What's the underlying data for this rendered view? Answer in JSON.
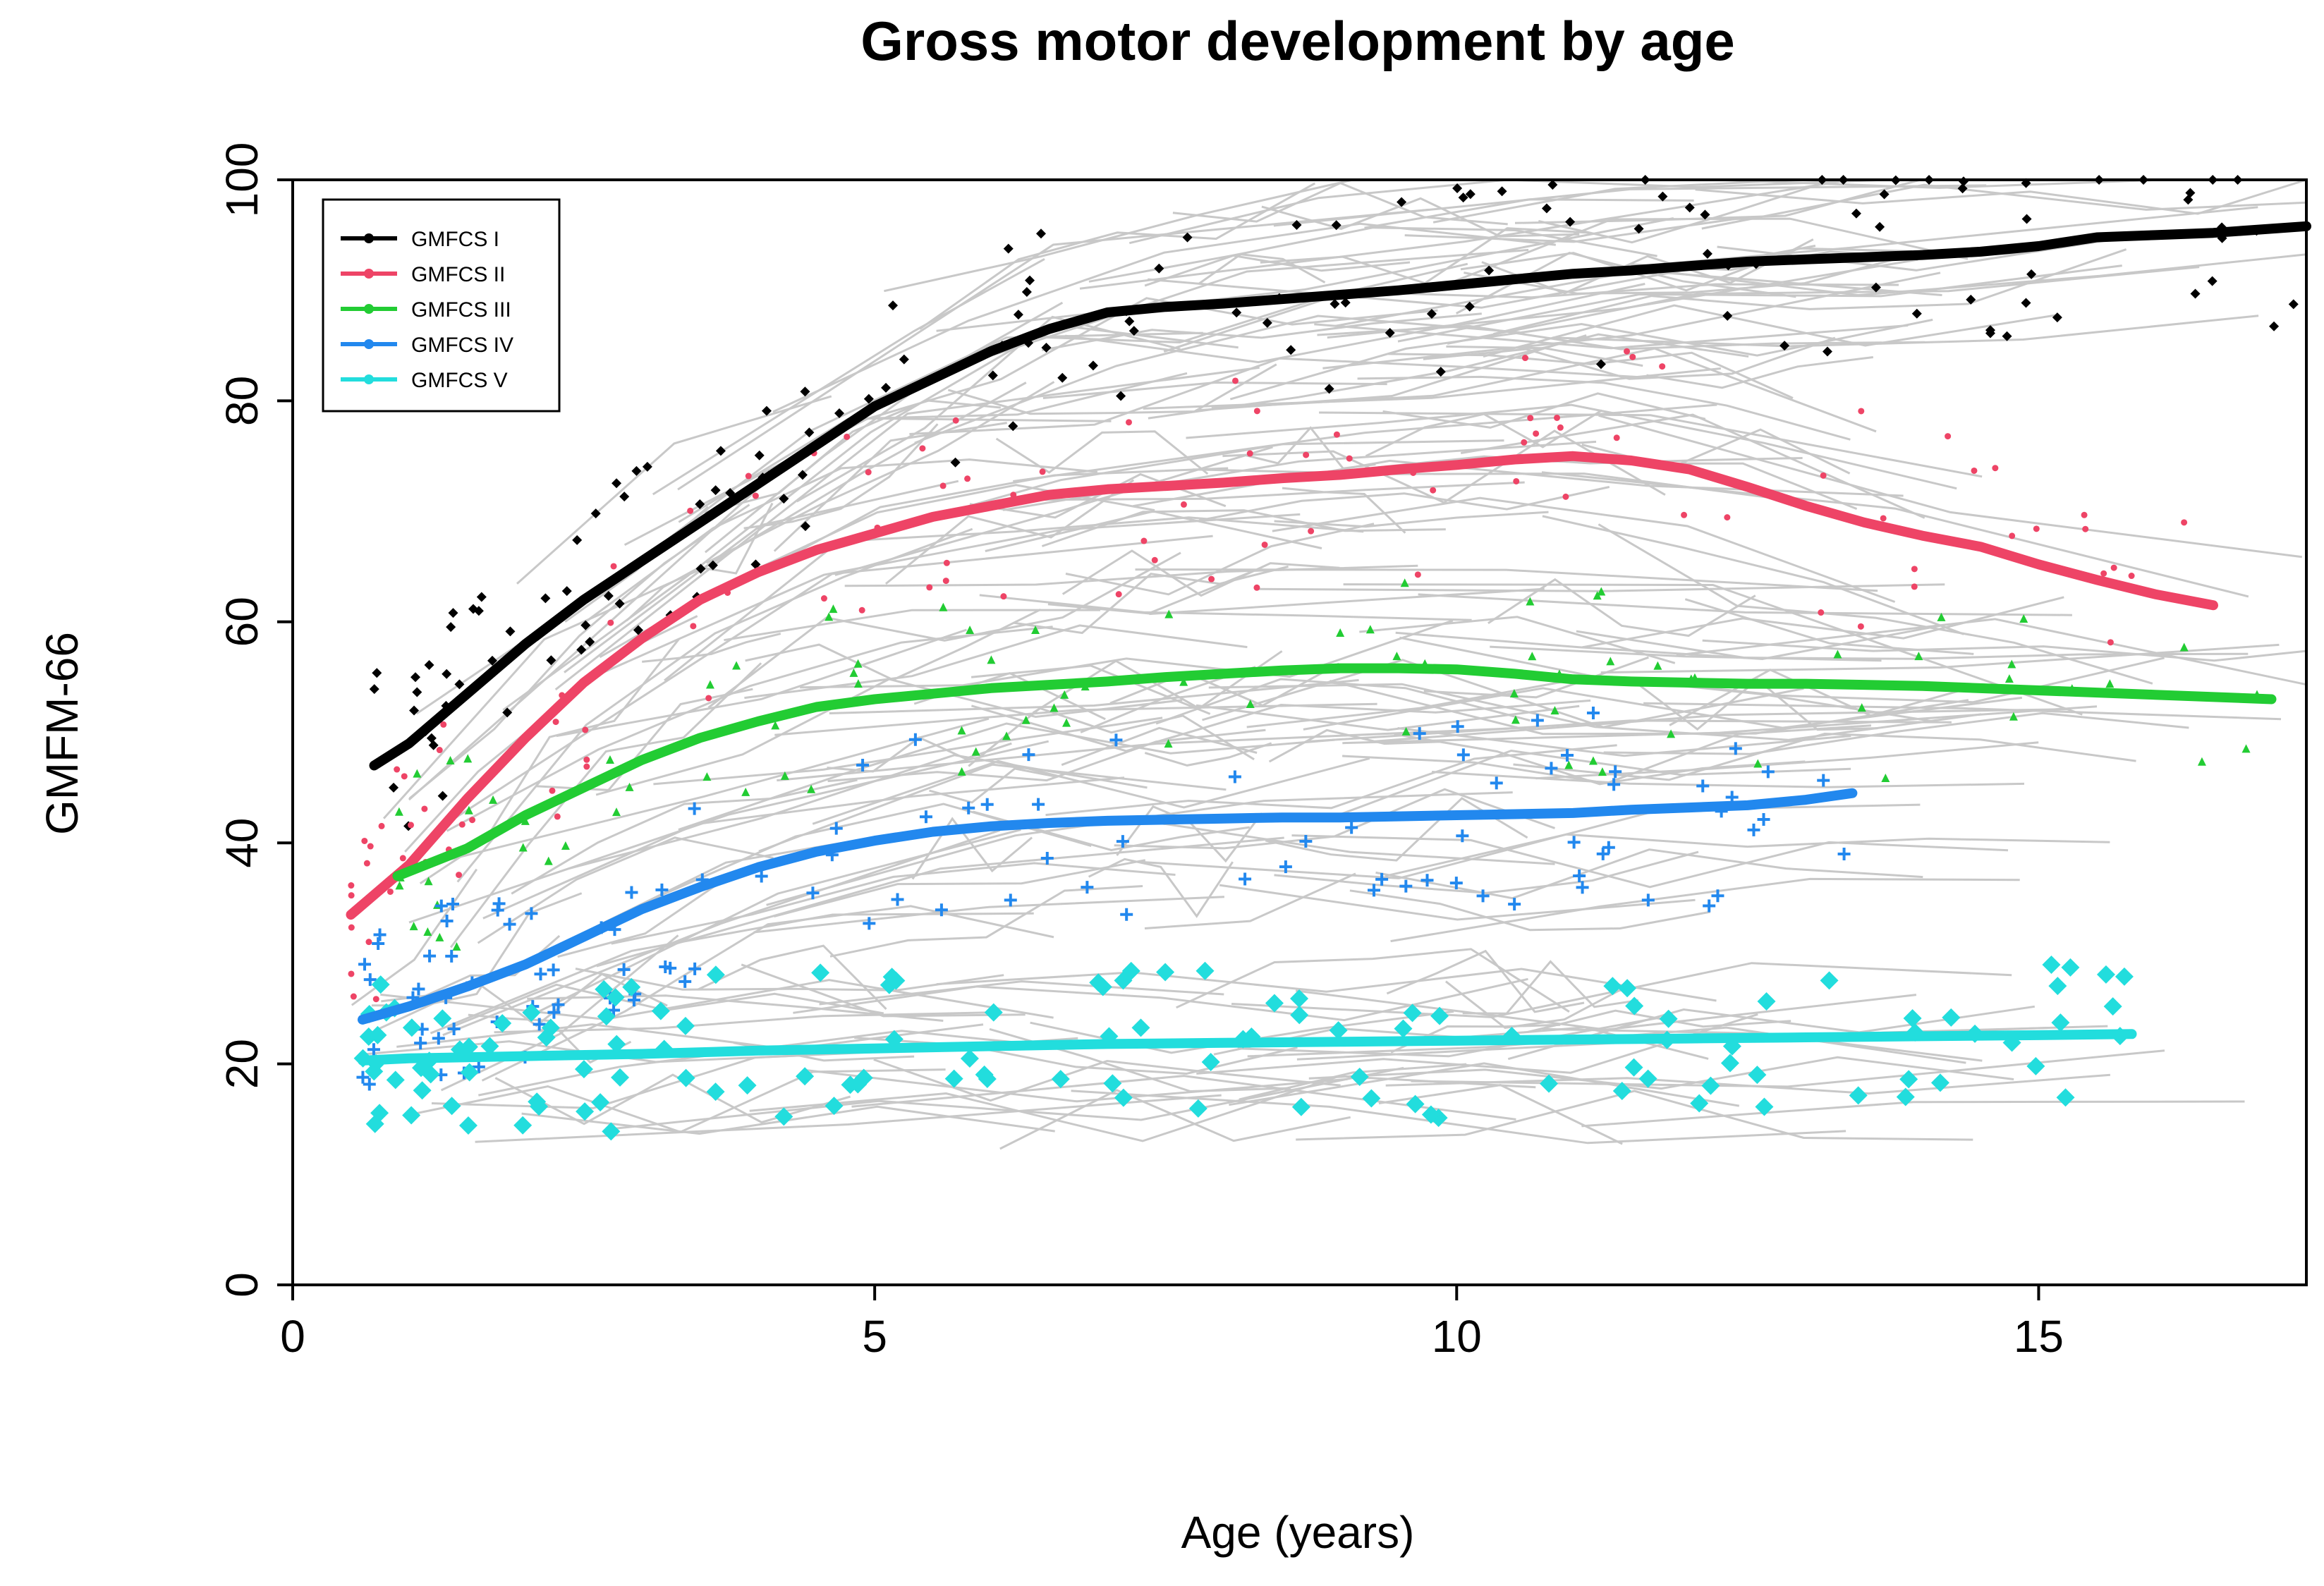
{
  "chart_data": {
    "type": "line",
    "title": "Gross motor development by age",
    "xlabel": "Age (years)",
    "ylabel": "GMFM-66",
    "xlim": [
      0,
      17.3
    ],
    "ylim": [
      0,
      100
    ],
    "x_ticks": [
      0,
      5,
      10,
      15
    ],
    "y_ticks": [
      0,
      20,
      40,
      60,
      80,
      100
    ],
    "grid": false,
    "legend_position": "top-left",
    "background_trajectories_color": "#c8c8c8",
    "series": [
      {
        "name": "GMFCS I",
        "color": "#000000",
        "marker": "diamond",
        "x": [
          0.7,
          1.0,
          1.5,
          2.0,
          2.5,
          3.0,
          3.5,
          4.0,
          4.5,
          5.0,
          5.5,
          6.0,
          6.5,
          7.0,
          7.5,
          8.0,
          8.5,
          9.0,
          9.5,
          10.0,
          10.5,
          11.0,
          11.5,
          12.0,
          12.5,
          13.0,
          13.5,
          14.0,
          14.5,
          15.0,
          15.5,
          16.0,
          16.5,
          17.3
        ],
        "values": [
          47.0,
          49.0,
          53.5,
          58.0,
          62.0,
          65.5,
          69.0,
          72.5,
          76.0,
          79.5,
          82.0,
          84.5,
          86.5,
          88.0,
          88.5,
          88.8,
          89.2,
          89.6,
          90.0,
          90.5,
          91.0,
          91.5,
          91.8,
          92.2,
          92.6,
          92.8,
          93.0,
          93.2,
          93.5,
          94.0,
          94.8,
          95.0,
          95.2,
          95.8
        ]
      },
      {
        "name": "GMFCS II",
        "color": "#ee4466",
        "marker": "dot",
        "x": [
          0.5,
          1.0,
          1.5,
          2.0,
          2.5,
          3.0,
          3.5,
          4.0,
          4.5,
          5.0,
          5.5,
          6.0,
          6.5,
          7.0,
          7.5,
          8.0,
          8.5,
          9.0,
          9.5,
          10.0,
          10.5,
          11.0,
          11.5,
          12.0,
          12.5,
          13.0,
          13.5,
          14.0,
          14.5,
          15.0,
          15.5,
          16.0,
          16.5
        ],
        "values": [
          33.5,
          38.0,
          44.0,
          49.5,
          54.5,
          58.5,
          62.0,
          64.5,
          66.5,
          68.0,
          69.5,
          70.5,
          71.5,
          72.0,
          72.3,
          72.6,
          73.0,
          73.3,
          73.8,
          74.2,
          74.7,
          75.0,
          74.6,
          73.8,
          72.2,
          70.5,
          69.0,
          67.8,
          66.8,
          65.2,
          63.8,
          62.5,
          61.5
        ]
      },
      {
        "name": "GMFCS III",
        "color": "#22cc33",
        "marker": "triangle",
        "x": [
          0.9,
          1.5,
          2.0,
          2.5,
          3.0,
          3.5,
          4.0,
          4.5,
          5.0,
          5.5,
          6.0,
          6.5,
          7.0,
          7.5,
          8.0,
          8.5,
          9.0,
          9.5,
          10.0,
          10.5,
          11.0,
          11.5,
          12.0,
          12.5,
          13.0,
          13.5,
          14.0,
          15.0,
          16.0,
          17.0
        ],
        "values": [
          37.0,
          39.5,
          42.5,
          45.0,
          47.5,
          49.5,
          51.0,
          52.3,
          53.0,
          53.5,
          54.0,
          54.3,
          54.6,
          55.0,
          55.3,
          55.6,
          55.8,
          55.8,
          55.7,
          55.3,
          54.8,
          54.6,
          54.5,
          54.4,
          54.4,
          54.3,
          54.2,
          53.8,
          53.4,
          53.0
        ]
      },
      {
        "name": "GMFCS IV",
        "color": "#2288ee",
        "marker": "plus",
        "x": [
          0.6,
          1.0,
          1.5,
          2.0,
          2.5,
          3.0,
          3.5,
          4.0,
          4.5,
          5.0,
          5.5,
          6.0,
          6.5,
          7.0,
          7.5,
          8.0,
          8.5,
          9.0,
          9.5,
          10.0,
          10.5,
          11.0,
          11.5,
          12.0,
          12.5,
          13.0,
          13.4
        ],
        "values": [
          24.0,
          25.2,
          27.0,
          29.0,
          31.5,
          34.0,
          36.0,
          37.8,
          39.2,
          40.2,
          41.0,
          41.5,
          41.8,
          42.0,
          42.1,
          42.2,
          42.3,
          42.3,
          42.4,
          42.5,
          42.6,
          42.7,
          43.0,
          43.2,
          43.4,
          43.9,
          44.5
        ]
      },
      {
        "name": "GMFCS V",
        "color": "#22dddd",
        "marker": "diamond",
        "x": [
          0.6,
          1.0,
          2.0,
          3.0,
          4.0,
          5.0,
          6.0,
          7.0,
          8.0,
          9.0,
          10.0,
          11.0,
          12.0,
          13.0,
          14.0,
          15.0,
          15.8
        ],
        "values": [
          20.3,
          20.5,
          20.7,
          20.9,
          21.2,
          21.4,
          21.6,
          21.8,
          21.9,
          22.0,
          22.1,
          22.2,
          22.3,
          22.4,
          22.5,
          22.6,
          22.7
        ]
      }
    ]
  }
}
